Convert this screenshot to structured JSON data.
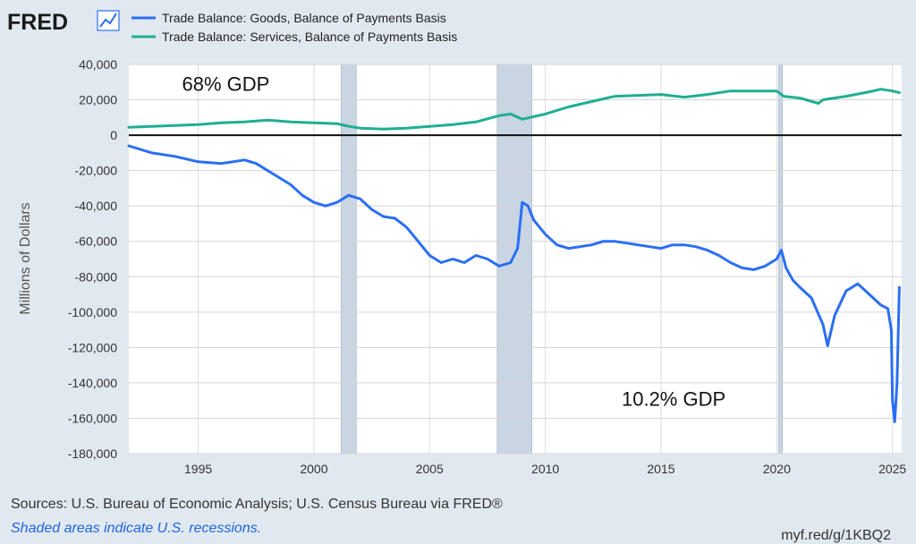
{
  "logo": {
    "text": "FRED",
    "icon": "line-chart-icon"
  },
  "colors": {
    "background": "#e1e9f0",
    "plot": "#ffffff",
    "goods": "#2a6ef5",
    "services": "#1fae93",
    "recession": "#c9d5e3",
    "footer_note": "#1f63e5"
  },
  "chart_data": {
    "type": "line",
    "ylabel": "Millions of Dollars",
    "xlim": [
      1992.0,
      2025.4
    ],
    "ylim": [
      -180000,
      40000
    ],
    "y_ticks": [
      40000,
      20000,
      0,
      -20000,
      -40000,
      -60000,
      -80000,
      -100000,
      -120000,
      -140000,
      -160000,
      -180000
    ],
    "y_tick_labels": [
      "40,000",
      "20,000",
      "0",
      "-20,000",
      "-40,000",
      "-60,000",
      "-80,000",
      "-100,000",
      "-120,000",
      "-140,000",
      "-160,000",
      "-180,000"
    ],
    "x_ticks": [
      1995,
      2000,
      2005,
      2010,
      2015,
      2020,
      2025
    ],
    "x_tick_labels": [
      "1995",
      "2000",
      "2005",
      "2010",
      "2015",
      "2020",
      "2025"
    ],
    "grid": "horizontal",
    "legend": "top-left",
    "recessions": [
      [
        2001.17,
        2001.83
      ],
      [
        2007.92,
        2009.42
      ],
      [
        2020.08,
        2020.25
      ]
    ],
    "series": [
      {
        "name": "Trade Balance: Goods, Balance of Payments Basis",
        "x": [
          1992.0,
          1993.0,
          1994.0,
          1995.0,
          1996.0,
          1997.0,
          1997.5,
          1998.0,
          1998.5,
          1999.0,
          1999.5,
          2000.0,
          2000.5,
          2001.0,
          2001.5,
          2002.0,
          2002.5,
          2003.0,
          2003.5,
          2004.0,
          2004.5,
          2005.0,
          2005.5,
          2006.0,
          2006.5,
          2007.0,
          2007.5,
          2008.0,
          2008.5,
          2008.8,
          2009.0,
          2009.25,
          2009.5,
          2010.0,
          2010.5,
          2011.0,
          2011.5,
          2012.0,
          2012.5,
          2013.0,
          2013.5,
          2014.0,
          2014.5,
          2015.0,
          2015.5,
          2016.0,
          2016.5,
          2017.0,
          2017.5,
          2018.0,
          2018.5,
          2019.0,
          2019.5,
          2020.0,
          2020.2,
          2020.4,
          2020.7,
          2021.0,
          2021.5,
          2022.0,
          2022.2,
          2022.5,
          2023.0,
          2023.5,
          2024.0,
          2024.5,
          2024.8,
          2024.95,
          2025.0,
          2025.1,
          2025.2,
          2025.3
        ],
        "values": [
          -6000,
          -10000,
          -12000,
          -15000,
          -16000,
          -14000,
          -16000,
          -20000,
          -24000,
          -28000,
          -34000,
          -38000,
          -40000,
          -38000,
          -34000,
          -36000,
          -42000,
          -46000,
          -47000,
          -52000,
          -60000,
          -68000,
          -72000,
          -70000,
          -72000,
          -68000,
          -70000,
          -74000,
          -72000,
          -64000,
          -38000,
          -40000,
          -48000,
          -56000,
          -62000,
          -64000,
          -63000,
          -62000,
          -60000,
          -60000,
          -61000,
          -62000,
          -63000,
          -64000,
          -62000,
          -62000,
          -63000,
          -65000,
          -68000,
          -72000,
          -75000,
          -76000,
          -74000,
          -70000,
          -65000,
          -75000,
          -82000,
          -86000,
          -92000,
          -107000,
          -119000,
          -102000,
          -88000,
          -84000,
          -90000,
          -96000,
          -98000,
          -110000,
          -150000,
          -162000,
          -140000,
          -86000
        ]
      },
      {
        "name": "Trade Balance: Services, Balance of Payments Basis",
        "x": [
          1992.0,
          1993.0,
          1994.0,
          1995.0,
          1996.0,
          1997.0,
          1998.0,
          1999.0,
          2000.0,
          2001.0,
          2001.5,
          2002.0,
          2003.0,
          2004.0,
          2005.0,
          2006.0,
          2007.0,
          2008.0,
          2008.5,
          2009.0,
          2010.0,
          2011.0,
          2012.0,
          2013.0,
          2014.0,
          2015.0,
          2016.0,
          2017.0,
          2018.0,
          2019.0,
          2020.0,
          2020.3,
          2021.0,
          2021.8,
          2022.0,
          2023.0,
          2024.0,
          2024.5,
          2025.0,
          2025.3
        ],
        "values": [
          4500,
          5000,
          5500,
          6000,
          7000,
          7500,
          8500,
          7500,
          7000,
          6500,
          5000,
          4000,
          3500,
          4000,
          5000,
          6000,
          7500,
          11000,
          12000,
          9000,
          12000,
          16000,
          19000,
          22000,
          22500,
          23000,
          21500,
          23000,
          25000,
          25000,
          25000,
          22000,
          21000,
          18000,
          20000,
          22000,
          24500,
          26000,
          25000,
          24000
        ]
      }
    ],
    "annotations": [
      {
        "text": "68% GDP",
        "x": 1994.3,
        "y": 25000
      },
      {
        "text": "10.2% GDP",
        "x": 2013.3,
        "y": -153000
      }
    ]
  },
  "footer": {
    "sources": "Sources: U.S. Bureau of Economic Analysis; U.S. Census Bureau via FRED®",
    "note": "Shaded areas indicate U.S. recessions.",
    "url": "myf.red/g/1KBQ2"
  }
}
